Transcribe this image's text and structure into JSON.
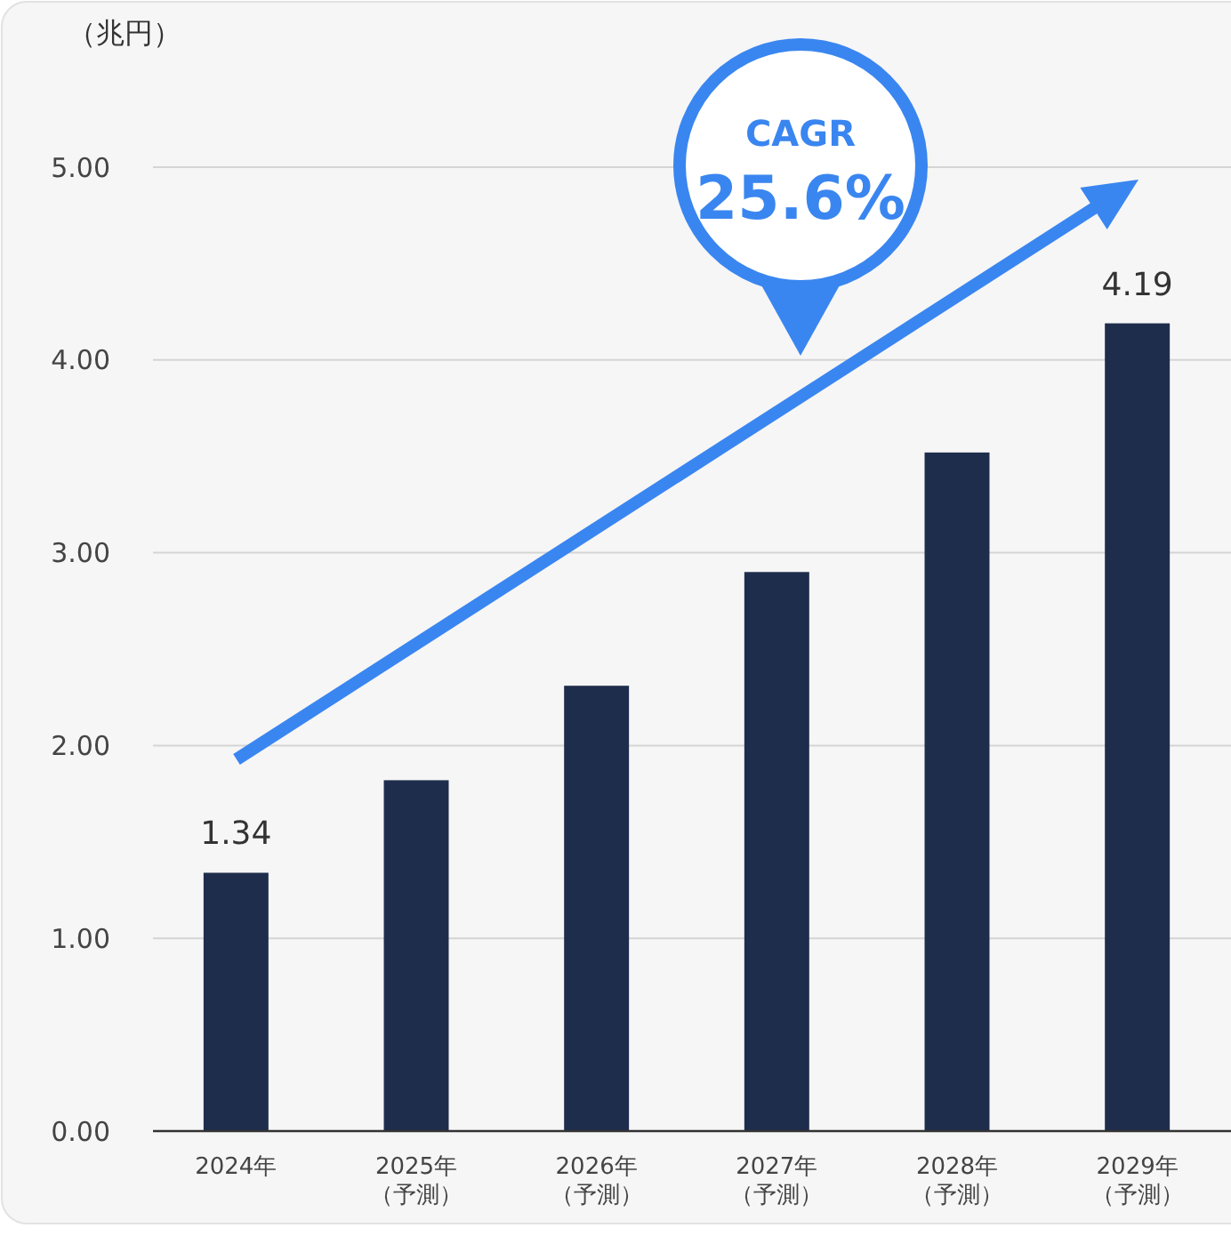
{
  "chart_data": {
    "type": "bar",
    "ylabel": "（兆円）",
    "categories": [
      "2024年",
      "2025年（予測）",
      "2026年（予測）",
      "2027年（予測）",
      "2028年（予測）",
      "2029年（予測）"
    ],
    "values": [
      1.34,
      1.82,
      2.31,
      2.9,
      3.52,
      4.19
    ],
    "value_labels": [
      "1.34",
      null,
      null,
      null,
      null,
      "4.19"
    ],
    "color": "#1f2d4d",
    "ylim": [
      0,
      5
    ],
    "yticks": [
      {
        "value": 0,
        "label": "0.00"
      },
      {
        "value": 1,
        "label": "1.00"
      },
      {
        "value": 2,
        "label": "2.00"
      },
      {
        "value": 3,
        "label": "3.00"
      },
      {
        "value": 4,
        "label": "4.00"
      },
      {
        "value": 5,
        "label": "5.00"
      }
    ],
    "grid": "y",
    "annotations": [
      "CAGR",
      "25.6%"
    ]
  }
}
